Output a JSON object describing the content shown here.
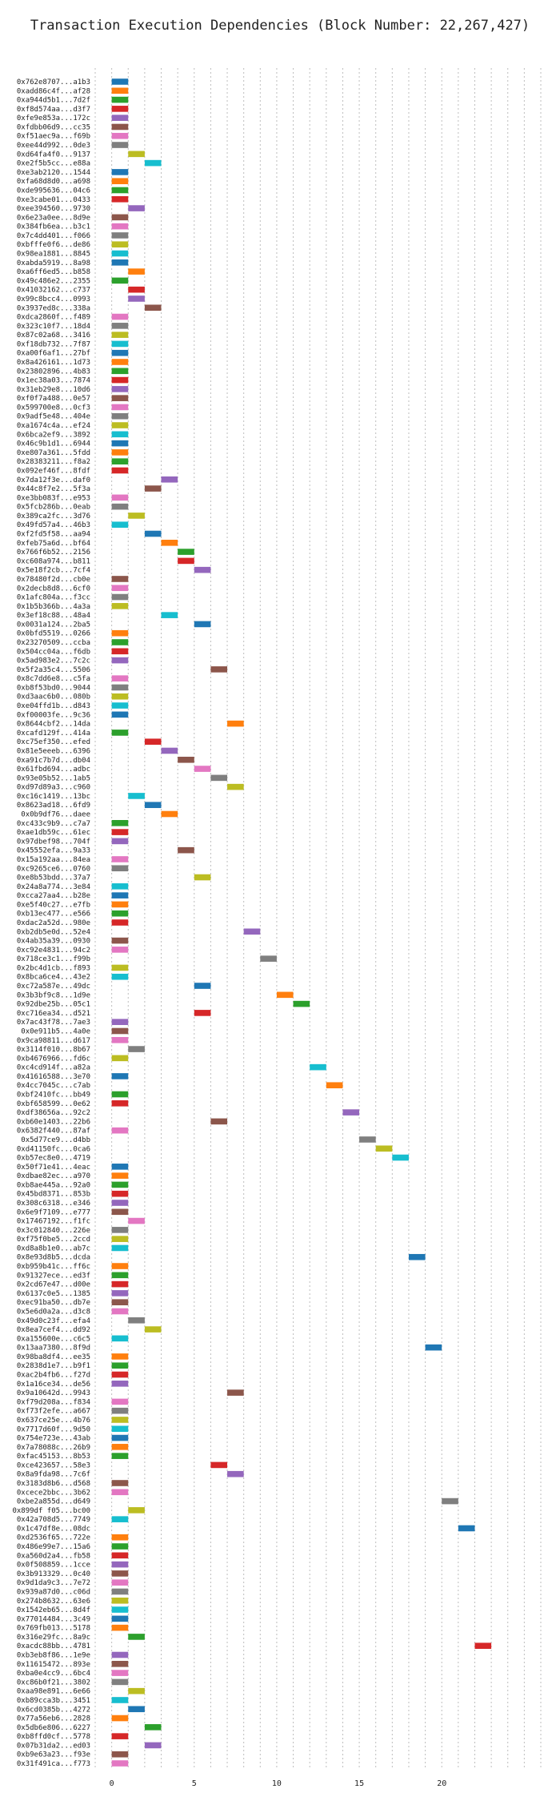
{
  "chart_data": {
    "type": "gantt",
    "title": "Transaction Execution Dependencies (Block Number: 22,267,427)",
    "xlabel": "",
    "ylabel": "",
    "xlim": [
      -1,
      26
    ],
    "xticks": [
      0,
      5,
      10,
      15,
      20
    ],
    "grid": true,
    "palette": [
      "#1f77b4",
      "#ff7f0e",
      "#2ca02c",
      "#d62728",
      "#9467bd",
      "#8c564b",
      "#e377c2",
      "#7f7f7f",
      "#bcbd22",
      "#17becf"
    ],
    "transactions": [
      {
        "label": "0x762e8707...a1b3",
        "start": 0
      },
      {
        "label": "0xadd86c4f...af28",
        "start": 0
      },
      {
        "label": "0xa944d5b1...7d2f",
        "start": 0
      },
      {
        "label": "0xf8d574aa...d3f7",
        "start": 0
      },
      {
        "label": "0xfe9e853a...172c",
        "start": 0
      },
      {
        "label": "0xfdbb06d9...cc35",
        "start": 0
      },
      {
        "label": "0xf51aec9a...f69b",
        "start": 0
      },
      {
        "label": "0xee44d992...0de3",
        "start": 0
      },
      {
        "label": "0xd64fa4f0...9137",
        "start": 1
      },
      {
        "label": "0xe2f5b5cc...e88a",
        "start": 2
      },
      {
        "label": "0xe3ab2120...1544",
        "start": 0
      },
      {
        "label": "0xfa68d8d0...a698",
        "start": 0
      },
      {
        "label": "0xde995636...04c6",
        "start": 0
      },
      {
        "label": "0xe3cabe01...0433",
        "start": 0
      },
      {
        "label": "0xee394560...9730",
        "start": 1
      },
      {
        "label": "0x6e23a0ee...8d9e",
        "start": 0
      },
      {
        "label": "0x384fb6ea...b3c1",
        "start": 0
      },
      {
        "label": "0x7c4dd401...f066",
        "start": 0
      },
      {
        "label": "0xbfffe0f6...de86",
        "start": 0
      },
      {
        "label": "0x98ea1881...8845",
        "start": 0
      },
      {
        "label": "0xabda5919...8a98",
        "start": 0
      },
      {
        "label": "0xa6ff6ed5...b858",
        "start": 1
      },
      {
        "label": "0x49c486e2...2355",
        "start": 0
      },
      {
        "label": "0x41032162...c737",
        "start": 1
      },
      {
        "label": "0x99c8bcc4...0993",
        "start": 1
      },
      {
        "label": "0x3937ed8c...338a",
        "start": 2
      },
      {
        "label": "0xdca2860f...f489",
        "start": 0
      },
      {
        "label": "0x323c10f7...18d4",
        "start": 0
      },
      {
        "label": "0x87c02a68...3416",
        "start": 0
      },
      {
        "label": "0xf18db732...7f87",
        "start": 0
      },
      {
        "label": "0xa00f6af1...27bf",
        "start": 0
      },
      {
        "label": "0x8a426161...1d73",
        "start": 0
      },
      {
        "label": "0x23802896...4b83",
        "start": 0
      },
      {
        "label": "0x1ec38a03...7874",
        "start": 0
      },
      {
        "label": "0x31eb29e8...10d6",
        "start": 0
      },
      {
        "label": "0xf0f7a488...0e57",
        "start": 0
      },
      {
        "label": "0x599700e8...0cf3",
        "start": 0
      },
      {
        "label": "0x9adf5e48...404e",
        "start": 0
      },
      {
        "label": "0xa1674c4a...ef24",
        "start": 0
      },
      {
        "label": "0x6bca2ef9...3892",
        "start": 0
      },
      {
        "label": "0x46c9b1d1...6944",
        "start": 0
      },
      {
        "label": "0xe807a361...5fdd",
        "start": 0
      },
      {
        "label": "0x28383211...f8a2",
        "start": 0
      },
      {
        "label": "0x092ef46f...8fdf",
        "start": 0
      },
      {
        "label": "0x7da12f3e...daf0",
        "start": 3
      },
      {
        "label": "0x44c8f7e2...5f3a",
        "start": 2
      },
      {
        "label": "0xe3bb083f...e953",
        "start": 0
      },
      {
        "label": "0x5fcb286b...0eab",
        "start": 0
      },
      {
        "label": "0x389ca2fc...3d76",
        "start": 1
      },
      {
        "label": "0x49fd57a4...46b3",
        "start": 0
      },
      {
        "label": "0xf2fd5f58...aa94",
        "start": 2
      },
      {
        "label": "0xfeb75a6d...bf64",
        "start": 3
      },
      {
        "label": "0x766f6b52...2156",
        "start": 4
      },
      {
        "label": "0xc608a974...b811",
        "start": 4
      },
      {
        "label": "0x5e18f2cb...7cf4",
        "start": 5
      },
      {
        "label": "0x78480f2d...cb0e",
        "start": 0
      },
      {
        "label": "0x2decb8d8...6cf0",
        "start": 0
      },
      {
        "label": "0x1afc804a...f3cc",
        "start": 0
      },
      {
        "label": "0x1b5b366b...4a3a",
        "start": 0
      },
      {
        "label": "0x3ef18c88...48a4",
        "start": 3
      },
      {
        "label": "0x0031a124...2ba5",
        "start": 5
      },
      {
        "label": "0x0bfd5519...0266",
        "start": 0
      },
      {
        "label": "0x23270509...ccba",
        "start": 0
      },
      {
        "label": "0x504cc04a...f6db",
        "start": 0
      },
      {
        "label": "0x5ad983e2...7c2c",
        "start": 0
      },
      {
        "label": "0x5f2a35c4...5506",
        "start": 6
      },
      {
        "label": "0x8c7dd6e8...c5fa",
        "start": 0
      },
      {
        "label": "0xb8f53bd0...9044",
        "start": 0
      },
      {
        "label": "0xd3aac6b0...080b",
        "start": 0
      },
      {
        "label": "0xe04ffd1b...d843",
        "start": 0
      },
      {
        "label": "0xf00003fe...9c36",
        "start": 0
      },
      {
        "label": "0x8644cbf2...14da",
        "start": 7
      },
      {
        "label": "0xcafd129f...414a",
        "start": 0
      },
      {
        "label": "0xc75ef350...efed",
        "start": 2
      },
      {
        "label": "0x81e5eeeb...6396",
        "start": 3
      },
      {
        "label": "0xa91c7b7d...db04",
        "start": 4
      },
      {
        "label": "0x61fbd694...adbc",
        "start": 5
      },
      {
        "label": "0x93e05b52...1ab5",
        "start": 6
      },
      {
        "label": "0xd97d89a3...c960",
        "start": 7
      },
      {
        "label": "0xc16c1419...13bc",
        "start": 1
      },
      {
        "label": "0x8623ad18...6fd9",
        "start": 2
      },
      {
        "label": "0x0b9df76...daee",
        "start": 3
      },
      {
        "label": "0xc433c9b9...c7a7",
        "start": 0
      },
      {
        "label": "0xae1db59c...61ec",
        "start": 0
      },
      {
        "label": "0x97dbef98...704f",
        "start": 0
      },
      {
        "label": "0x45552efa...9a33",
        "start": 4
      },
      {
        "label": "0x15a192aa...84ea",
        "start": 0
      },
      {
        "label": "0xc9265ce6...0760",
        "start": 0
      },
      {
        "label": "0xe8b53bdd...37a7",
        "start": 5
      },
      {
        "label": "0x24a8a774...3e84",
        "start": 0
      },
      {
        "label": "0xcca27aa4...b28e",
        "start": 0
      },
      {
        "label": "0xe5f40c27...e7fb",
        "start": 0
      },
      {
        "label": "0xb13ec477...e566",
        "start": 0
      },
      {
        "label": "0xdac2a52d...980e",
        "start": 0
      },
      {
        "label": "0xb2db5e0d...52e4",
        "start": 8
      },
      {
        "label": "0x4ab35a39...0930",
        "start": 0
      },
      {
        "label": "0xc92e4831...94c2",
        "start": 0
      },
      {
        "label": "0x718ce3c1...f99b",
        "start": 9
      },
      {
        "label": "0x2bc4d1cb...f893",
        "start": 0
      },
      {
        "label": "0x8bca6ce4...43e2",
        "start": 0
      },
      {
        "label": "0xc72a587e...49dc",
        "start": 5
      },
      {
        "label": "0x3b3bf9c8...1d9e",
        "start": 10
      },
      {
        "label": "0x92dbe25b...05c1",
        "start": 11
      },
      {
        "label": "0xc716ea34...d521",
        "start": 5
      },
      {
        "label": "0x7ac43f78...7ae3",
        "start": 0
      },
      {
        "label": "0x0e911b5...4a0e",
        "start": 0
      },
      {
        "label": "0x9ca98811...d617",
        "start": 0
      },
      {
        "label": "0x3114f010...8b67",
        "start": 1
      },
      {
        "label": "0xb4676966...fd6c",
        "start": 0
      },
      {
        "label": "0xc4cd914f...a82a",
        "start": 12
      },
      {
        "label": "0x41616588...3e70",
        "start": 0
      },
      {
        "label": "0x4cc7045c...c7ab",
        "start": 13
      },
      {
        "label": "0xbf2410fc...bb49",
        "start": 0
      },
      {
        "label": "0xbf658599...0e62",
        "start": 0
      },
      {
        "label": "0xdf38656a...92c2",
        "start": 14
      },
      {
        "label": "0xb60e1403...22b6",
        "start": 6
      },
      {
        "label": "0x6382f440...87af",
        "start": 0
      },
      {
        "label": "0x5d77ce9...d4bb",
        "start": 15
      },
      {
        "label": "0xd41150fc...0ca6",
        "start": 16
      },
      {
        "label": "0xb57ec8e0...4719",
        "start": 17
      },
      {
        "label": "0x50f71e41...4eac",
        "start": 0
      },
      {
        "label": "0xdbae82ec...a970",
        "start": 0
      },
      {
        "label": "0xb8ae445a...92a0",
        "start": 0
      },
      {
        "label": "0x45bd8371...853b",
        "start": 0
      },
      {
        "label": "0x308c6318...e346",
        "start": 0
      },
      {
        "label": "0x6e9f7109...e777",
        "start": 0
      },
      {
        "label": "0x17467192...f1fc",
        "start": 1
      },
      {
        "label": "0x3c012840...226e",
        "start": 0
      },
      {
        "label": "0xf75f0be5...2ccd",
        "start": 0
      },
      {
        "label": "0xd8a8b1e0...ab7c",
        "start": 0
      },
      {
        "label": "0x8e93d8b5...dcda",
        "start": 18
      },
      {
        "label": "0xb959b41c...ff6c",
        "start": 0
      },
      {
        "label": "0x91327ece...ed3f",
        "start": 0
      },
      {
        "label": "0x2cd67e47...d00e",
        "start": 0
      },
      {
        "label": "0x6137c0e5...1385",
        "start": 0
      },
      {
        "label": "0xec91ba50...db7e",
        "start": 0
      },
      {
        "label": "0x5e6d0a2a...d3c8",
        "start": 0
      },
      {
        "label": "0x49d0c23f...efa4",
        "start": 1
      },
      {
        "label": "0x8ea7cef4...dd92",
        "start": 2
      },
      {
        "label": "0xa155600e...c6c5",
        "start": 0
      },
      {
        "label": "0x13aa7380...8f9d",
        "start": 19
      },
      {
        "label": "0x98ba8df4...ee35",
        "start": 0
      },
      {
        "label": "0x2838d1e7...b9f1",
        "start": 0
      },
      {
        "label": "0xac2b4fb6...f27d",
        "start": 0
      },
      {
        "label": "0x1a16ce34...de56",
        "start": 0
      },
      {
        "label": "0x9a10642d...9943",
        "start": 7
      },
      {
        "label": "0xf79d208a...f834",
        "start": 0
      },
      {
        "label": "0xf73f2efe...a667",
        "start": 0
      },
      {
        "label": "0x637ce25e...4b76",
        "start": 0
      },
      {
        "label": "0x7717d60f...9d50",
        "start": 0
      },
      {
        "label": "0x754e723e...43ab",
        "start": 0
      },
      {
        "label": "0x7a78088c...26b9",
        "start": 0
      },
      {
        "label": "0xfac45153...8b53",
        "start": 0
      },
      {
        "label": "0xce423657...58e3",
        "start": 6
      },
      {
        "label": "0x8a9fda98...7c6f",
        "start": 7
      },
      {
        "label": "0x3183d8b6...d568",
        "start": 0
      },
      {
        "label": "0xcece2bbc...3b62",
        "start": 0
      },
      {
        "label": "0xbe2a855d...d649",
        "start": 20
      },
      {
        "label": "0x899df f05...bc00",
        "start": 1
      },
      {
        "label": "0x42a708d5...7749",
        "start": 0
      },
      {
        "label": "0x1c47df8e...08dc",
        "start": 21
      },
      {
        "label": "0xd2536f65...722e",
        "start": 0
      },
      {
        "label": "0x486e99e7...15a6",
        "start": 0
      },
      {
        "label": "0xa560d2a4...fb58",
        "start": 0
      },
      {
        "label": "0x0f508859...1cce",
        "start": 0
      },
      {
        "label": "0x3b913329...0c40",
        "start": 0
      },
      {
        "label": "0x9d1da9c3...7e72",
        "start": 0
      },
      {
        "label": "0x939a87d0...c06d",
        "start": 0
      },
      {
        "label": "0x274b8632...63e6",
        "start": 0
      },
      {
        "label": "0x1542eb65...8d4f",
        "start": 0
      },
      {
        "label": "0x77014484...3c49",
        "start": 0
      },
      {
        "label": "0x769fb013...5178",
        "start": 0
      },
      {
        "label": "0x316e29fc...8a9c",
        "start": 1
      },
      {
        "label": "0xacdc88bb...4781",
        "start": 22
      },
      {
        "label": "0xb3eb8f86...1e9e",
        "start": 0
      },
      {
        "label": "0x11615472...893e",
        "start": 0
      },
      {
        "label": "0xba0e4cc9...6bc4",
        "start": 0
      },
      {
        "label": "0xc86b0f21...3802",
        "start": 0
      },
      {
        "label": "0xaa98e891...6e66",
        "start": 1
      },
      {
        "label": "0xb89cca3b...3451",
        "start": 0
      },
      {
        "label": "0x6cd0385b...4272",
        "start": 1
      },
      {
        "label": "0x77a56eb6...2828",
        "start": 0
      },
      {
        "label": "0x5db6e806...6227",
        "start": 2
      },
      {
        "label": "0xb8ffd0cf...5778",
        "start": 0
      },
      {
        "label": "0x07b31da2...ed03",
        "start": 2
      },
      {
        "label": "0xb9e63a23...f93e",
        "start": 0
      },
      {
        "label": "0x31f491ca...f773",
        "start": 0
      }
    ]
  }
}
